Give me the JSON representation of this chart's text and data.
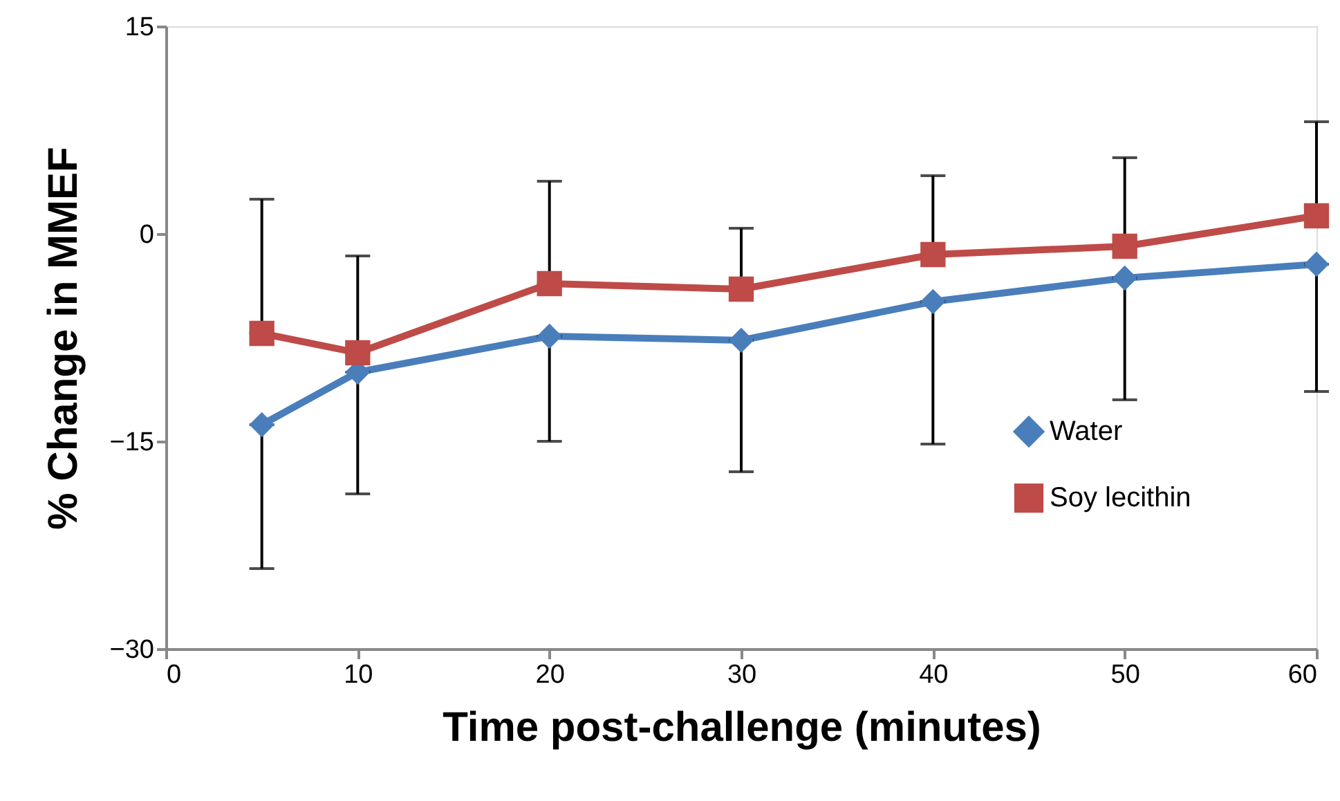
{
  "chart_data": {
    "type": "line",
    "xlabel": "Time post-challenge (minutes)",
    "ylabel": "% Change in MMEF",
    "x": [
      5,
      10,
      20,
      30,
      40,
      50,
      60
    ],
    "xlim": [
      0,
      60
    ],
    "xticks": [
      0,
      10,
      20,
      30,
      40,
      50,
      60
    ],
    "ylim": [
      -30,
      15
    ],
    "yticks": [
      -30,
      -15,
      0,
      15
    ],
    "grid": false,
    "legend": "bottom right",
    "line_style": "solid",
    "series": [
      {
        "name": "Water",
        "color": "#4a7ebb",
        "marker": "diamond",
        "values": [
          -13.8,
          -10.0,
          -7.4,
          -7.7,
          -4.9,
          -3.2,
          -2.2
        ],
        "errors": [
          [
            -24.2,
            -13.8
          ],
          [
            -18.8,
            -10.0
          ],
          [
            -15.0,
            -7.4
          ],
          [
            -17.2,
            -7.7
          ],
          [
            -15.2,
            -4.9
          ],
          [
            -12.0,
            -3.2
          ],
          [
            -11.4,
            -2.2
          ]
        ]
      },
      {
        "name": "Soy lecithin",
        "color": "#be4b48",
        "marker": "square",
        "values": [
          -7.2,
          -8.6,
          -3.6,
          -4.0,
          -1.5,
          -0.9,
          1.3
        ],
        "errors": [
          [
            -7.2,
            2.5
          ],
          [
            -8.6,
            -1.6
          ],
          [
            -3.6,
            3.8
          ],
          [
            -4.0,
            0.4
          ],
          [
            -1.5,
            4.2
          ],
          [
            -0.9,
            5.5
          ],
          [
            1.3,
            8.1
          ]
        ]
      }
    ]
  }
}
